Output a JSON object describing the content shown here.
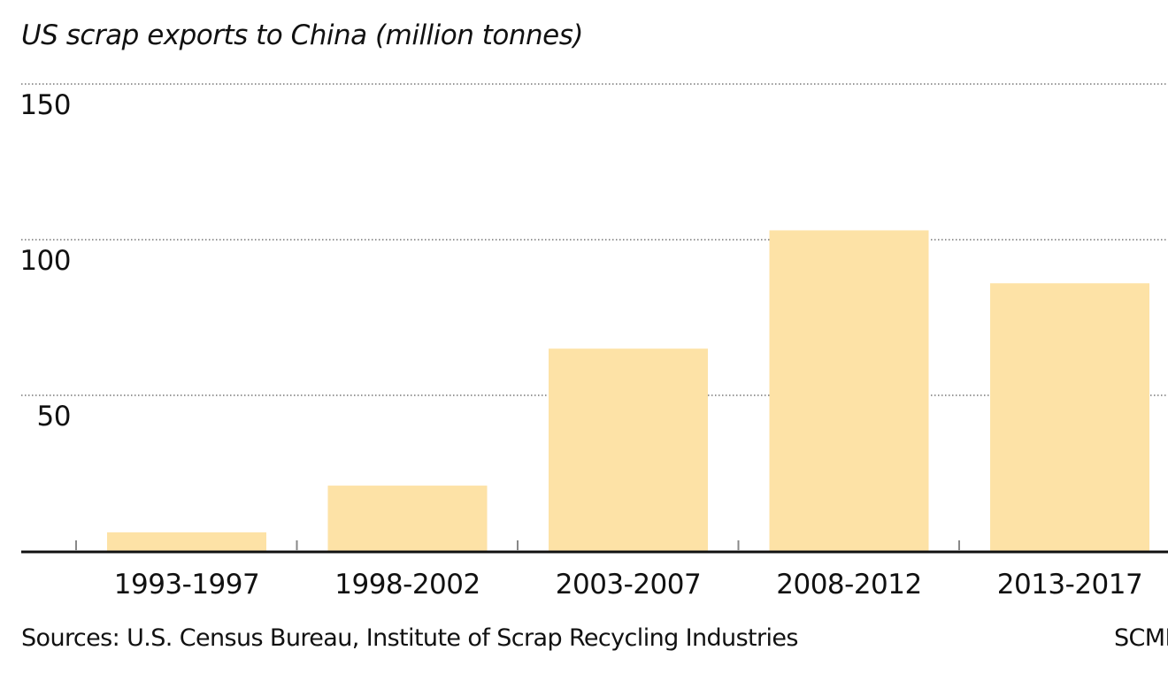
{
  "chart_data": {
    "type": "bar",
    "title": "US scrap exports to China (million tonnes)",
    "categories": [
      "1993-1997",
      "1998-2002",
      "2003-2007",
      "2008-2012",
      "2013-2017"
    ],
    "values": [
      6,
      21,
      65,
      103,
      86
    ],
    "ylim": [
      0,
      150
    ],
    "yticks": [
      50,
      100,
      150
    ],
    "grid": true,
    "bar_color": "#fde2a6",
    "source": "Sources: U.S. Census Bureau, Institute of Scrap Recycling Industries",
    "credit": "SCMP"
  }
}
